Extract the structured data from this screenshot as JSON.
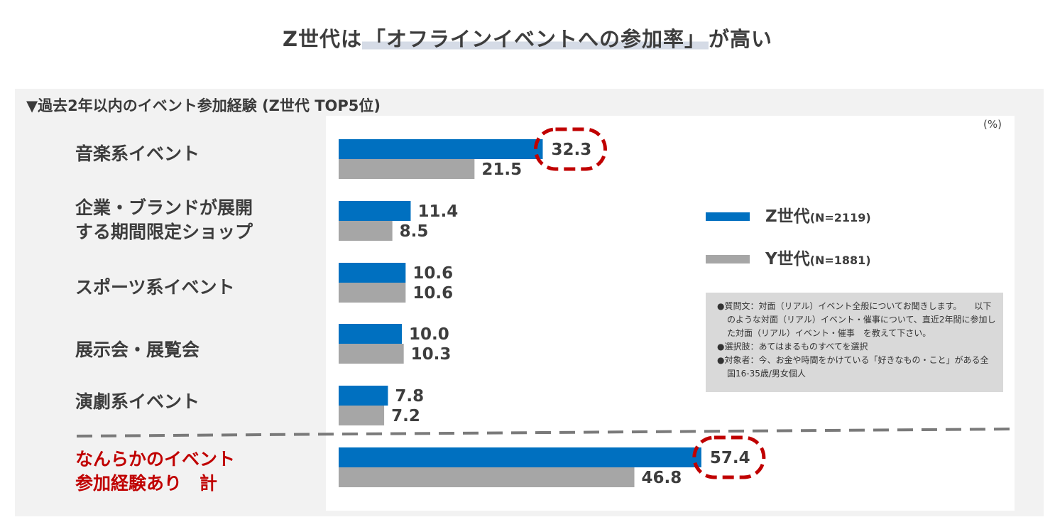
{
  "title": {
    "prefix": "Z世代は",
    "highlight": "「オフラインイベントへの参加率」",
    "suffix": "が高い"
  },
  "subtitle": "▼過去2年以内のイベント参加経験 (Z世代 TOP5位)",
  "unit": "(%)",
  "chart_data": {
    "type": "bar",
    "orientation": "horizontal",
    "categories": [
      [
        "音楽系イベント"
      ],
      [
        "企業・ブランドが展開",
        "する期間限定ショップ"
      ],
      [
        "スポーツ系イベント"
      ],
      [
        "展示会・展覧会"
      ],
      [
        "演劇系イベント"
      ],
      [
        "なんらかのイベント",
        "参加経験あり　計"
      ]
    ],
    "series": [
      {
        "name": "Z世代",
        "n": "(N=2119)",
        "color": "#0070c0",
        "values": [
          32.3,
          11.4,
          10.6,
          10.0,
          7.8,
          57.4
        ]
      },
      {
        "name": "Y世代",
        "n": "(N=1881)",
        "color": "#a6a6a6",
        "values": [
          21.5,
          8.5,
          10.6,
          10.3,
          7.2,
          46.8
        ]
      }
    ],
    "highlighted": [
      0,
      5
    ],
    "highlight_color": "#c00000",
    "total_label_color": "#c00000",
    "xlim": [
      0,
      100
    ],
    "grid": false,
    "legend_position": "right"
  },
  "note": [
    "●質問文：対面（リアル）イベント全般についてお聞きします。　　以下のような対面（リアル）イベント・催事について、直近2年間に参加した対面（リアル）イベント・催事　を教えて下さい。",
    "●選択肢：あてはまるものすべてを選択",
    "●対象者：今、お金や時間をかけている「好きなもの・こと」がある全国16-35歳/男女個人"
  ]
}
